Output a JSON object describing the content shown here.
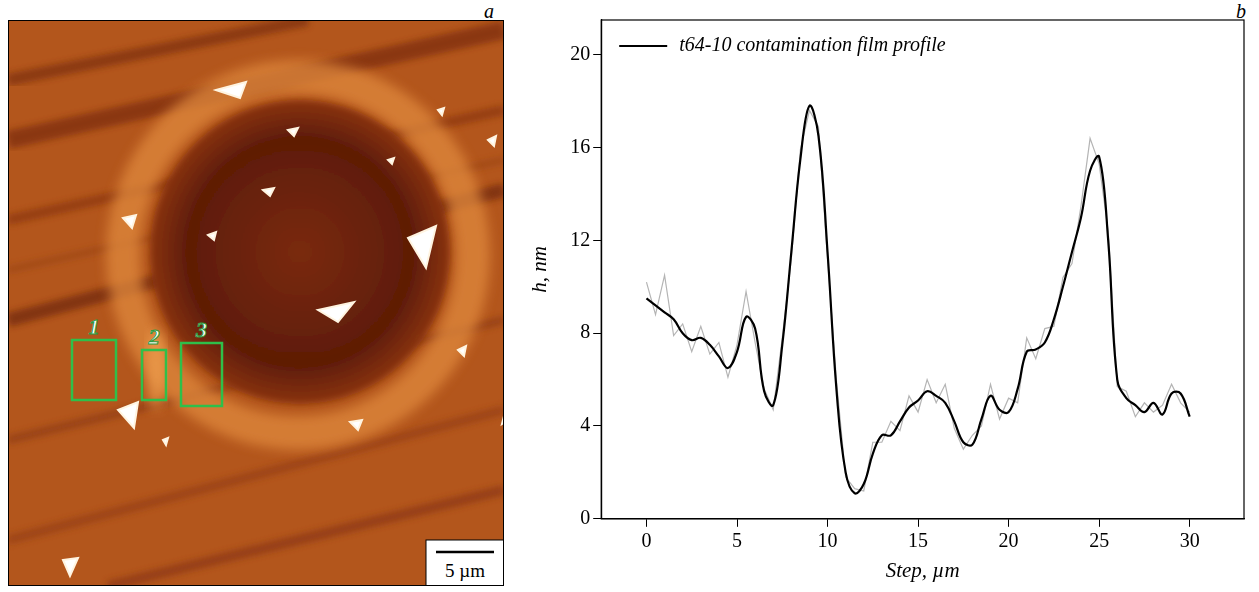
{
  "image_panel": {
    "panel_label": "a",
    "regions": [
      "1",
      "2",
      "3"
    ],
    "scale_bar": "5 µm"
  },
  "chart_data": {
    "panel_label": "b",
    "type": "line",
    "xlabel": "Step, µm",
    "ylabel": "h, nm",
    "x": [
      0,
      0.5,
      1,
      1.5,
      2,
      2.5,
      3,
      3.5,
      4,
      4.5,
      5,
      5.5,
      6,
      6.5,
      7,
      7.5,
      8,
      8.5,
      9,
      9.5,
      10,
      10.5,
      11,
      11.5,
      12,
      12.5,
      13,
      13.5,
      14,
      14.5,
      15,
      15.5,
      16,
      16.5,
      17,
      17.5,
      18,
      18.5,
      19,
      19.5,
      20,
      20.5,
      21,
      21.5,
      22,
      22.5,
      23,
      23.5,
      24,
      24.5,
      25,
      25.5,
      26,
      26.5,
      27,
      27.5,
      28,
      28.5,
      29,
      29.5,
      30
    ],
    "series": [
      {
        "color": "#b4b4b4",
        "line_style": "solid",
        "values": [
          10.2,
          8.8,
          10.5,
          7.9,
          8.4,
          7.2,
          8.3,
          7.1,
          7.6,
          6.1,
          7.5,
          9.8,
          7.6,
          5.6,
          4.7,
          7.8,
          11.2,
          15.9,
          17.6,
          16.9,
          11.2,
          5.9,
          1.8,
          1.3,
          1.2,
          3.3,
          3.3,
          4.2,
          3.8,
          5.3,
          4.6,
          6.0,
          5.0,
          5.8,
          3.9,
          3.0,
          3.6,
          4.0,
          5.8,
          4.3,
          5.2,
          5.0,
          7.8,
          6.9,
          8.2,
          8.3,
          10.4,
          11.0,
          13.5,
          16.4,
          15.3,
          12.4,
          5.7,
          5.5,
          4.4,
          5.0,
          4.6,
          4.9,
          5.8,
          5.0,
          4.6
        ]
      },
      {
        "name": "t64-10 contamination film profile",
        "color": "#000000",
        "line_style": "solid",
        "values": [
          9.5,
          9.2,
          8.9,
          8.6,
          8.0,
          7.7,
          7.8,
          7.5,
          7.0,
          6.5,
          7.2,
          8.7,
          8.2,
          5.5,
          4.9,
          7.5,
          11.5,
          15.5,
          17.8,
          16.5,
          11.5,
          5.5,
          2.0,
          1.1,
          1.5,
          2.8,
          3.6,
          3.6,
          4.2,
          4.8,
          5.1,
          5.5,
          5.3,
          5.0,
          4.2,
          3.3,
          3.2,
          4.3,
          5.3,
          4.7,
          4.6,
          5.6,
          7.2,
          7.3,
          7.6,
          8.6,
          10.0,
          11.5,
          13.0,
          15.0,
          15.6,
          12.0,
          6.0,
          5.2,
          4.9,
          4.6,
          5.0,
          4.5,
          5.4,
          5.4,
          4.4
        ]
      }
    ],
    "xlim": [
      -2.5,
      33
    ],
    "xticks": [
      0,
      5,
      10,
      15,
      20,
      25,
      30
    ],
    "ylim": [
      0,
      21.5
    ],
    "yticks": [
      0,
      4,
      8,
      12,
      16,
      20
    ],
    "grid": false,
    "legend": "top-left"
  }
}
